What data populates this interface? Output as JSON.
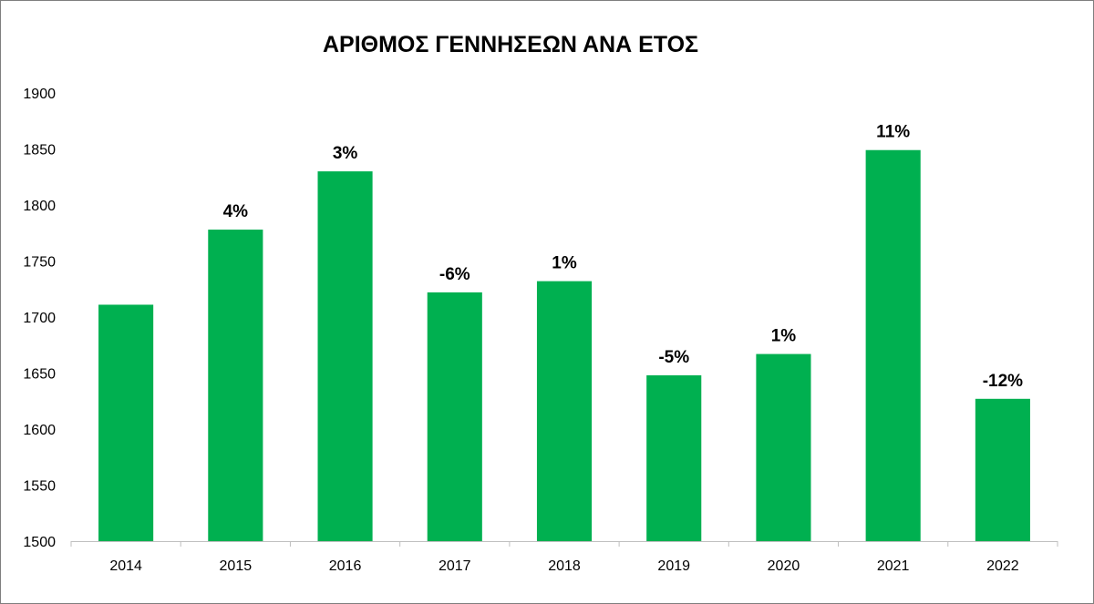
{
  "chart_data": {
    "type": "bar",
    "title": "ΑΡΙΘΜΟΣ ΓΕΝΝΗΣΕΩΝ ΑΝΑ ΕΤΟΣ",
    "xlabel": "",
    "ylabel": "",
    "categories": [
      "2014",
      "2015",
      "2016",
      "2017",
      "2018",
      "2019",
      "2020",
      "2021",
      "2022"
    ],
    "values": [
      1711,
      1778,
      1830,
      1722,
      1732,
      1648,
      1667,
      1849,
      1627
    ],
    "data_labels": [
      "",
      "4%",
      "3%",
      "-6%",
      "1%",
      "-5%",
      "1%",
      "11%",
      "-12%"
    ],
    "ylim": [
      1500,
      1900
    ],
    "yticks": [
      1500,
      1550,
      1600,
      1650,
      1700,
      1750,
      1800,
      1850,
      1900
    ],
    "grid": false,
    "legend": "none",
    "bar_color": "#00b050"
  }
}
